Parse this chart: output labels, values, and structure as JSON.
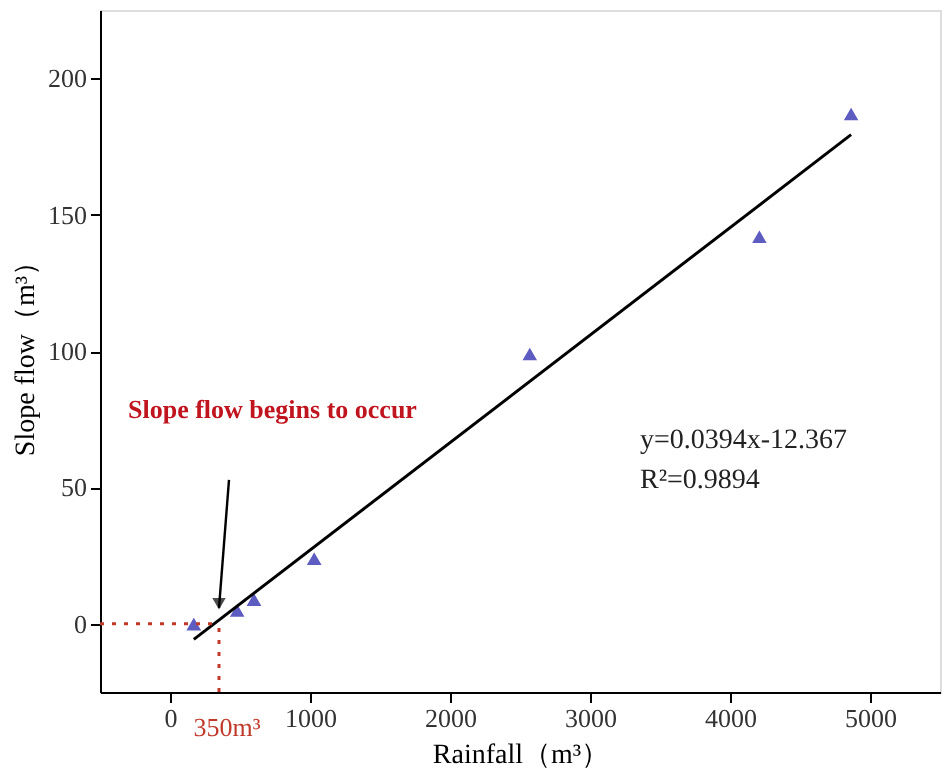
{
  "chart_data": {
    "type": "scatter",
    "xlabel": "Rainfall（m³）",
    "ylabel": "Slope flow（m³）",
    "series": [
      {
        "color": "#1a1aa8",
        "marker": "triangle",
        "x": [
          170,
          480,
          600,
          1030,
          2570,
          4210,
          4865
        ],
        "values": [
          0,
          5,
          9,
          24,
          99,
          142,
          187
        ]
      },
      {
        "type": "line",
        "color": "#000000",
        "x": [
          170,
          4865
        ],
        "values": [
          -5.7,
          179.3
        ],
        "line_style": "solid"
      }
    ],
    "xlim": [
      -500,
      5500
    ],
    "ylim": [
      -25,
      225
    ],
    "xticks": [
      0,
      1000,
      2000,
      3000,
      4000,
      5000
    ],
    "yticks": [
      0,
      50,
      100,
      150,
      200
    ],
    "grid": false,
    "ref_lines": [
      {
        "axis": "y",
        "value": 0,
        "color": "#c0392b",
        "line_style": "dotted"
      },
      {
        "axis": "x",
        "value": 350,
        "label": "350m³",
        "color": "#c0392b",
        "line_style": "dotted"
      }
    ],
    "annotations": [
      "Slope flow begins to occur",
      "y=0.0394x-12.367",
      "R²=0.9894"
    ]
  }
}
